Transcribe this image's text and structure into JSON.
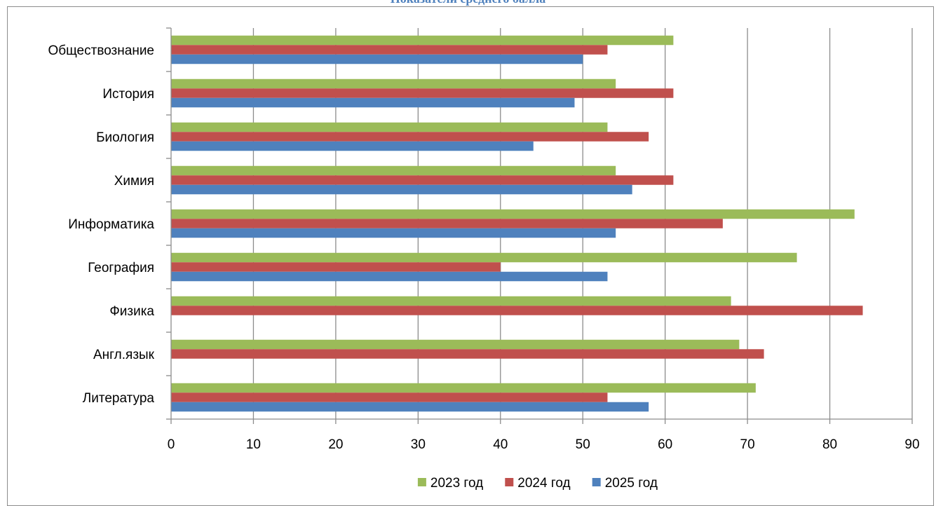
{
  "chart_data": {
    "type": "bar",
    "orientation": "horizontal",
    "title": "Показатели среднего балла",
    "categories": [
      "Литература",
      "Англ.язык",
      "Физика",
      "География",
      "Информатика",
      "Химия",
      "Биология",
      "История",
      "Обществознание"
    ],
    "series": [
      {
        "name": "2023 год",
        "color": "#9bbb59",
        "values": [
          71,
          69,
          68,
          76,
          83,
          54,
          53,
          54,
          61
        ]
      },
      {
        "name": "2024 год",
        "color": "#c0504d",
        "values": [
          53,
          72,
          84,
          40,
          67,
          61,
          58,
          61,
          53
        ]
      },
      {
        "name": "2025 год",
        "color": "#4f81bd",
        "values": [
          58,
          null,
          null,
          53,
          54,
          56,
          44,
          49,
          50
        ]
      }
    ],
    "xlim": [
      0,
      90
    ],
    "xticks": [
      0,
      10,
      20,
      30,
      40,
      50,
      60,
      70,
      80,
      90
    ],
    "grid": "vertical",
    "legend_position": "bottom",
    "xlabel": "",
    "ylabel": ""
  }
}
